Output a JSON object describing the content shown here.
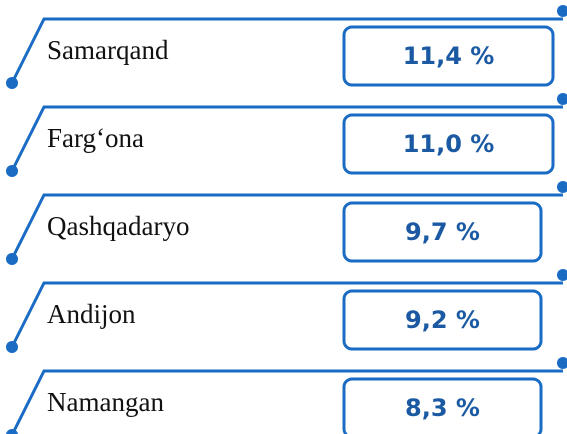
{
  "items": [
    {
      "name": "Samarqand",
      "share": "11,4 %"
    },
    {
      "name": "Farg‘ona",
      "share": "11,0 %"
    },
    {
      "name": "Qashqadaryo",
      "share": "9,7 %"
    },
    {
      "name": "Andijon",
      "share": "9,2 %"
    },
    {
      "name": "Namangan",
      "share": "8,3 %"
    }
  ]
}
